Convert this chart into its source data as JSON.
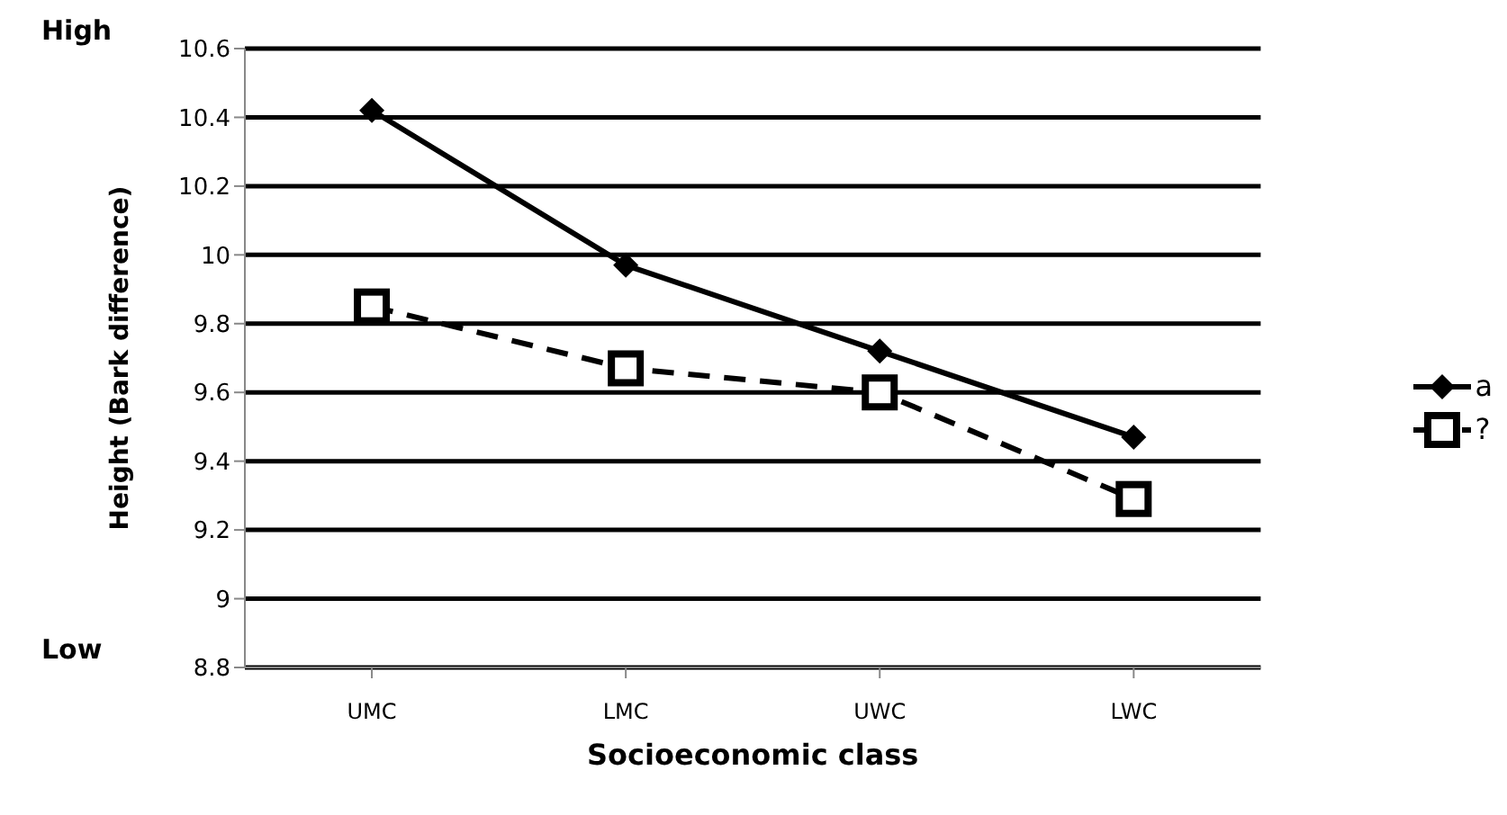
{
  "chart_data": {
    "type": "line",
    "xlabel": "Socioeconomic class",
    "ylabel": "Height (Bark difference)",
    "categories": [
      "UMC",
      "LMC",
      "UWC",
      "LWC"
    ],
    "series": [
      {
        "name": "a",
        "color": "#000000",
        "values": [
          10.42,
          9.97,
          9.72,
          9.47
        ],
        "marker": "diamond",
        "line_style": "solid"
      },
      {
        "name": "?",
        "color": "#000000",
        "values": [
          9.85,
          9.67,
          9.6,
          9.29
        ],
        "marker": "square",
        "line_style": "dashed"
      }
    ],
    "ylim": [
      8.8,
      10.6
    ],
    "yticks": [
      8.8,
      9,
      9.2,
      9.4,
      9.6,
      9.8,
      10,
      10.2,
      10.4,
      10.6
    ],
    "grid": "y",
    "legend": "right",
    "annotations": [
      "High",
      "Low"
    ]
  }
}
